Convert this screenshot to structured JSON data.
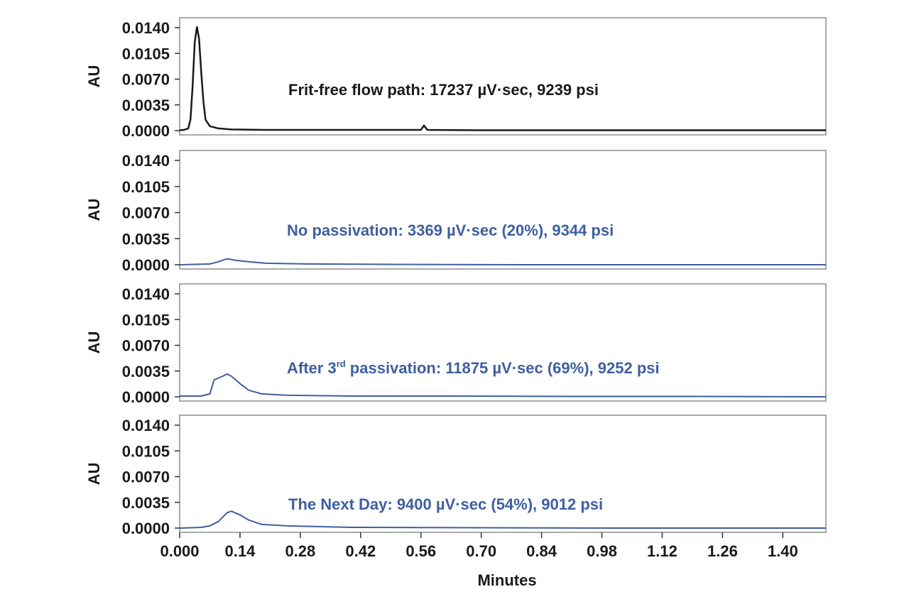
{
  "chart_data": {
    "type": "line",
    "xlabel": "Minutes",
    "xlim": [
      0.0,
      1.5
    ],
    "x_ticks": [
      "0.000",
      "0.14",
      "0.28",
      "0.42",
      "0.56",
      "0.70",
      "0.84",
      "0.98",
      "1.12",
      "1.26",
      "1.40"
    ],
    "ylabel": "AU",
    "ylim": [
      0.0,
      0.0145
    ],
    "y_ticks": [
      "0.0000",
      "0.0035",
      "0.0070",
      "0.0105",
      "0.0140"
    ],
    "grid": false,
    "panels": [
      {
        "annotation": "Frit-free flow path: 17237 µV·sec, 9239 psi",
        "color": "#1a1a1a",
        "points": [
          [
            0.0,
            5e-05
          ],
          [
            0.01,
            0.0001
          ],
          [
            0.02,
            0.0003
          ],
          [
            0.025,
            0.0015
          ],
          [
            0.03,
            0.006
          ],
          [
            0.035,
            0.012
          ],
          [
            0.04,
            0.0141
          ],
          [
            0.045,
            0.0125
          ],
          [
            0.05,
            0.008
          ],
          [
            0.055,
            0.004
          ],
          [
            0.06,
            0.0015
          ],
          [
            0.07,
            0.0006
          ],
          [
            0.09,
            0.0003
          ],
          [
            0.12,
            0.00015
          ],
          [
            0.2,
            0.0001
          ],
          [
            0.3,
            0.0001
          ],
          [
            0.4,
            0.0001
          ],
          [
            0.5,
            0.0001
          ],
          [
            0.56,
            0.0001
          ],
          [
            0.567,
            0.0007
          ],
          [
            0.575,
            0.0001
          ],
          [
            0.7,
            5e-05
          ],
          [
            0.9,
            5e-05
          ],
          [
            1.1,
            5e-05
          ],
          [
            1.3,
            5e-05
          ],
          [
            1.5,
            5e-05
          ]
        ]
      },
      {
        "annotation": "No passivation: 3369 µV·sec (20%), 9344 psi",
        "color": "#3f5f9f",
        "points": [
          [
            0.0,
            0.0
          ],
          [
            0.07,
            0.0001
          ],
          [
            0.09,
            0.0004
          ],
          [
            0.11,
            0.0008
          ],
          [
            0.13,
            0.0006
          ],
          [
            0.16,
            0.0004
          ],
          [
            0.2,
            0.0002
          ],
          [
            0.3,
            0.0001
          ],
          [
            0.5,
            5e-05
          ],
          [
            0.8,
            0.0
          ],
          [
            1.1,
            0.0
          ],
          [
            1.5,
            0.0
          ]
        ]
      },
      {
        "annotation_parts": {
          "pre": "After 3",
          "sup": "rd",
          "post": " passivation: 11875 µV·sec (69%), 9252 psi"
        },
        "color": "#3f5f9f",
        "points": [
          [
            0.0,
            0.0001
          ],
          [
            0.05,
            0.0001
          ],
          [
            0.07,
            0.0004
          ],
          [
            0.08,
            0.0023
          ],
          [
            0.1,
            0.0028
          ],
          [
            0.11,
            0.0031
          ],
          [
            0.12,
            0.0028
          ],
          [
            0.14,
            0.0018
          ],
          [
            0.16,
            0.0009
          ],
          [
            0.19,
            0.0004
          ],
          [
            0.25,
            0.0002
          ],
          [
            0.4,
            0.0001
          ],
          [
            0.6,
            0.0001
          ],
          [
            0.9,
            5e-05
          ],
          [
            1.2,
            5e-05
          ],
          [
            1.5,
            0.0
          ]
        ]
      },
      {
        "annotation": "The Next Day: 9400 µV·sec (54%), 9012 psi",
        "color": "#3f5f9f",
        "points": [
          [
            0.0,
            0.0
          ],
          [
            0.05,
            0.0001
          ],
          [
            0.07,
            0.0003
          ],
          [
            0.09,
            0.0009
          ],
          [
            0.11,
            0.0021
          ],
          [
            0.12,
            0.0023
          ],
          [
            0.14,
            0.0018
          ],
          [
            0.16,
            0.0011
          ],
          [
            0.19,
            0.0005
          ],
          [
            0.25,
            0.0003
          ],
          [
            0.4,
            0.0001
          ],
          [
            0.7,
            5e-05
          ],
          [
            1.0,
            0.0
          ],
          [
            1.5,
            0.0
          ]
        ]
      }
    ]
  }
}
